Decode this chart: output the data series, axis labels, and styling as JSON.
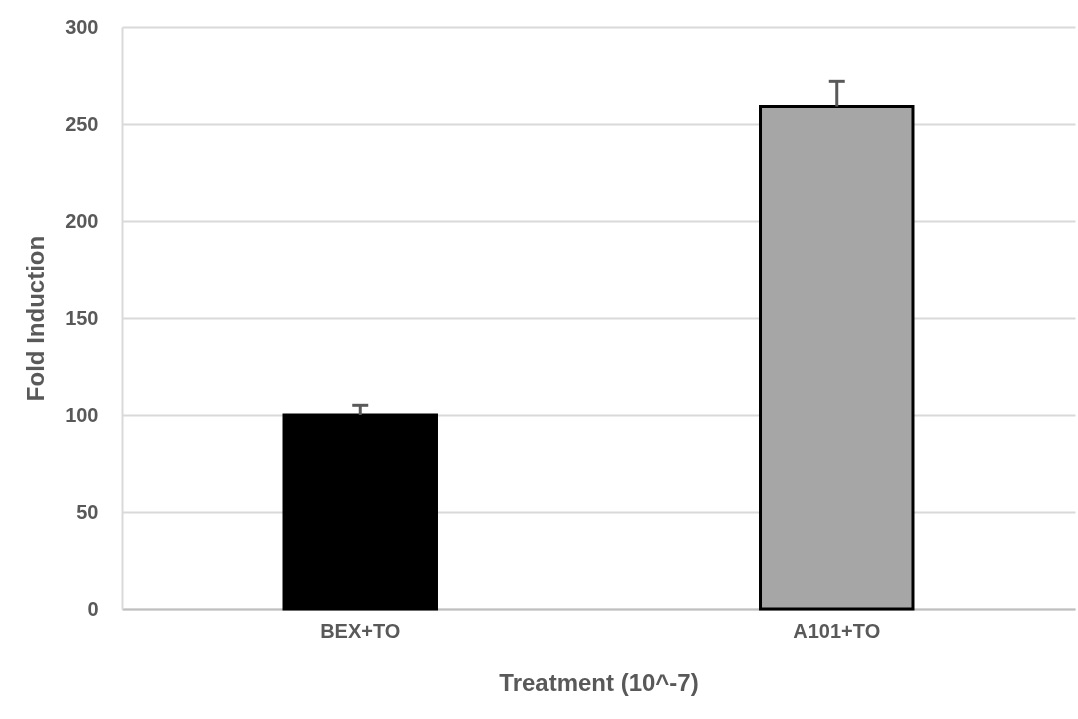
{
  "chart_data": {
    "type": "bar",
    "xlabel": "Treatment (10^-7)",
    "ylabel": "Fold Induction",
    "categories": [
      "BEX+TO",
      "A101+TO"
    ],
    "values": [
      100,
      259
    ],
    "colors": [
      "#000000",
      "#a6a6a6"
    ],
    "errors": [
      [
        100,
        105
      ],
      [
        259,
        272
      ]
    ],
    "ylim": [
      0,
      300
    ],
    "yticks": [
      0,
      50,
      100,
      150,
      200,
      250,
      300
    ],
    "grid": "y"
  }
}
